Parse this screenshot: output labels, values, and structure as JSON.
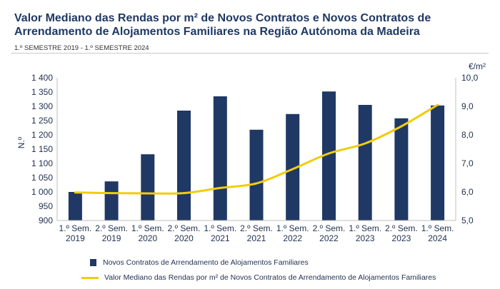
{
  "title": "Valor Mediano das Rendas por m² de Novos Contratos e Novos Contratos de Arrendamento de Alojamentos Familiares na Região Autónoma da Madeira",
  "subtitle": "1.º SEMESTRE 2019 - 1.º SEMESTRE 2024",
  "colors": {
    "bar": "#1f3864",
    "line": "#f2cc0c",
    "grid": "#d9d9d9"
  },
  "chart_data": {
    "type": "bar",
    "categories": [
      [
        "1.º Sem.",
        "2019"
      ],
      [
        "2.º Sem.",
        "2019"
      ],
      [
        "1.º Sem.",
        "2020"
      ],
      [
        "2.º Sem.",
        "2020"
      ],
      [
        "1.º Sem.",
        "2021"
      ],
      [
        "2.º Sem.",
        "2021"
      ],
      [
        "1.º Sem.",
        "2022"
      ],
      [
        "2.º Sem.",
        "2022"
      ],
      [
        "1.º Sem.",
        "2023"
      ],
      [
        "2.º Sem.",
        "2023"
      ],
      [
        "1.º Sem.",
        "2024"
      ]
    ],
    "series": [
      {
        "name": "Novos Contratos de Arrendamento de Alojamentos Familiares",
        "type": "bar",
        "axis": "left",
        "values": [
          1000,
          1037,
          1132,
          1285,
          1335,
          1218,
          1273,
          1352,
          1305,
          1258,
          1303
        ]
      },
      {
        "name": "Valor Mediano das Rendas por m² de Novos Contratos de Arrendamento de Alojamentos Familiares",
        "type": "line",
        "axis": "right",
        "values": [
          5.98,
          5.96,
          5.95,
          5.96,
          6.14,
          6.3,
          6.8,
          7.35,
          7.7,
          8.3,
          9.05
        ]
      }
    ],
    "y_left": {
      "label": "N.º",
      "min": 900,
      "max": 1400,
      "ticks": [
        "900",
        "950",
        "1 000",
        "1 050",
        "1 100",
        "1 150",
        "1 200",
        "1 250",
        "1 300",
        "1 350",
        "1 400"
      ]
    },
    "y_right": {
      "label": "€/m²",
      "min": 5.0,
      "max": 10.0,
      "ticks": [
        "5,0",
        "6,0",
        "7,0",
        "8,0",
        "9,0",
        "10,0"
      ]
    },
    "legend_position": "bottom",
    "grid": false
  }
}
